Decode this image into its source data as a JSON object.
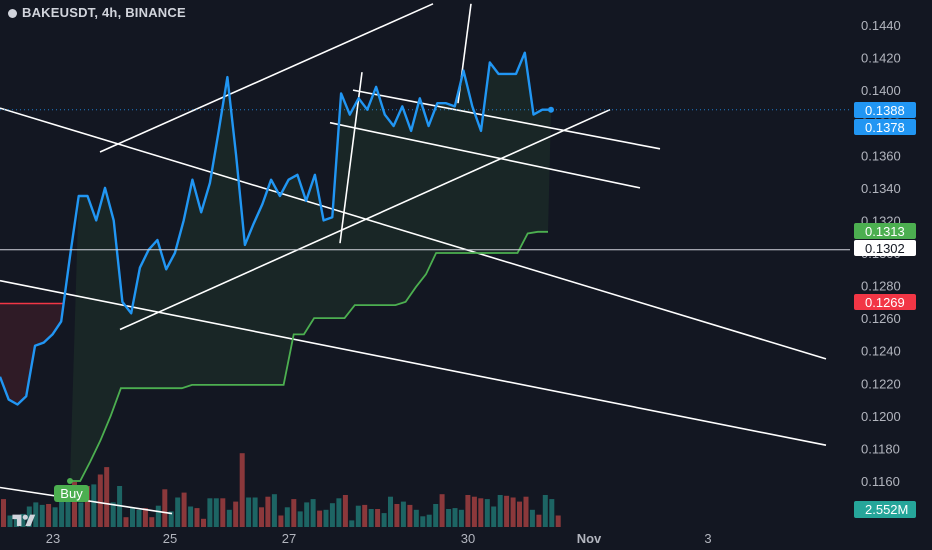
{
  "header": {
    "title": "BAKEUSDT, 4h, BINANCE"
  },
  "colors": {
    "background": "#131722",
    "price_line": "#2196f3",
    "stop_line": "#4caf50",
    "red_stop": "#f23645",
    "volume_up": "#26a69a",
    "volume_down": "#ef5350",
    "trendlines": "#ffffff"
  },
  "chart_data": {
    "type": "line",
    "xlabel": "",
    "ylabel": "",
    "x_ticks": [
      "23",
      "25",
      "27",
      "30",
      "Nov",
      "3"
    ],
    "y_ticks": [
      "0.1440",
      "0.1420",
      "0.1400",
      "0.1380",
      "0.1360",
      "0.1340",
      "0.1320",
      "0.1300",
      "0.1280",
      "0.1260",
      "0.1240",
      "0.1220",
      "0.1200",
      "0.1180",
      "0.1160"
    ],
    "ylim": [
      0.1152,
      0.1453
    ],
    "grid": false,
    "legend": "none",
    "price_series": {
      "values": [
        0.1224,
        0.121,
        0.1207,
        0.1212,
        0.1243,
        0.1245,
        0.125,
        0.1258,
        0.1298,
        0.1335,
        0.1335,
        0.132,
        0.134,
        0.132,
        0.127,
        0.1263,
        0.1291,
        0.1302,
        0.1308,
        0.129,
        0.13,
        0.132,
        0.1345,
        0.1325,
        0.1343,
        0.1375,
        0.1408,
        0.136,
        0.1305,
        0.1318,
        0.133,
        0.1345,
        0.1335,
        0.1345,
        0.1348,
        0.1332,
        0.1348,
        0.132,
        0.1322,
        0.1398,
        0.1385,
        0.1395,
        0.1388,
        0.1402,
        0.1385,
        0.1378,
        0.139,
        0.1375,
        0.1395,
        0.1378,
        0.1392,
        0.1392,
        0.139,
        0.1412,
        0.139,
        0.1375,
        0.1417,
        0.141,
        0.141,
        0.141,
        0.1423,
        0.1385,
        0.1388,
        0.1388
      ]
    },
    "stop_series": {
      "values": [
        0.116,
        0.116,
        0.1172,
        0.1185,
        0.12,
        0.1217,
        0.1217,
        0.1217,
        0.1217,
        0.1217,
        0.1217,
        0.1217,
        0.1219,
        0.1219,
        0.1219,
        0.1219,
        0.1219,
        0.1219,
        0.1219,
        0.1219,
        0.1219,
        0.1219,
        0.125,
        0.125,
        0.126,
        0.126,
        0.126,
        0.126,
        0.1268,
        0.1268,
        0.1268,
        0.1268,
        0.1268,
        0.127,
        0.1279,
        0.1287,
        0.13,
        0.13,
        0.13,
        0.13,
        0.13,
        0.13,
        0.13,
        0.13,
        0.13,
        0.1312,
        0.1313,
        0.1313
      ]
    },
    "red_stop_value": 0.1269,
    "volume": {
      "bars": [
        [
          "down",
          34
        ],
        [
          "up",
          14
        ],
        [
          "up",
          13
        ],
        [
          "up",
          16
        ],
        [
          "up",
          25
        ],
        [
          "up",
          30
        ],
        [
          "up",
          27
        ],
        [
          "down",
          28
        ],
        [
          "up",
          24
        ],
        [
          "up",
          34
        ],
        [
          "up",
          37
        ],
        [
          "down",
          55
        ],
        [
          "up",
          30
        ],
        [
          "down",
          50
        ],
        [
          "up",
          52
        ],
        [
          "down",
          64
        ],
        [
          "down",
          73
        ],
        [
          "up",
          30
        ],
        [
          "up",
          50
        ],
        [
          "down",
          12
        ],
        [
          "up",
          23
        ],
        [
          "up",
          21
        ],
        [
          "down",
          23
        ],
        [
          "down",
          12
        ],
        [
          "up",
          26
        ],
        [
          "down",
          46
        ],
        [
          "up",
          19
        ],
        [
          "up",
          36
        ],
        [
          "down",
          42
        ],
        [
          "up",
          25
        ],
        [
          "down",
          23
        ],
        [
          "down",
          10
        ],
        [
          "up",
          35
        ],
        [
          "up",
          35
        ],
        [
          "down",
          35
        ],
        [
          "up",
          21
        ],
        [
          "down",
          31
        ],
        [
          "down",
          90
        ],
        [
          "up",
          36
        ],
        [
          "up",
          36
        ],
        [
          "down",
          24
        ],
        [
          "down",
          37
        ],
        [
          "up",
          40
        ],
        [
          "down",
          14
        ],
        [
          "up",
          24
        ],
        [
          "down",
          34
        ],
        [
          "up",
          19
        ],
        [
          "up",
          30
        ],
        [
          "up",
          34
        ],
        [
          "down",
          20
        ],
        [
          "up",
          21
        ],
        [
          "up",
          29
        ],
        [
          "up",
          35
        ],
        [
          "down",
          39
        ],
        [
          "up",
          8
        ],
        [
          "up",
          26
        ],
        [
          "down",
          27
        ],
        [
          "up",
          22
        ],
        [
          "down",
          22
        ],
        [
          "up",
          17
        ],
        [
          "up",
          37
        ],
        [
          "down",
          28
        ],
        [
          "up",
          31
        ],
        [
          "down",
          27
        ],
        [
          "up",
          21
        ],
        [
          "up",
          13
        ],
        [
          "up",
          15
        ],
        [
          "up",
          28
        ],
        [
          "down",
          40
        ],
        [
          "up",
          22
        ],
        [
          "up",
          23
        ],
        [
          "up",
          21
        ],
        [
          "down",
          39
        ],
        [
          "down",
          37
        ],
        [
          "down",
          35
        ],
        [
          "up",
          34
        ],
        [
          "up",
          25
        ],
        [
          "up",
          39
        ],
        [
          "down",
          38
        ],
        [
          "down",
          36
        ],
        [
          "down",
          31
        ],
        [
          "down",
          37
        ],
        [
          "up",
          21
        ],
        [
          "down",
          15
        ],
        [
          "up",
          39
        ],
        [
          "up",
          34
        ],
        [
          "down",
          14
        ]
      ]
    },
    "trendlines": [
      {
        "p1": [
          0,
          0.1389
        ],
        "p2": [
          826,
          0.1235
        ]
      },
      {
        "p1": [
          0,
          0.1283
        ],
        "p2": [
          826,
          0.1182
        ]
      },
      {
        "p1": [
          100,
          0.1362
        ],
        "p2": [
          433,
          0.1453
        ]
      },
      {
        "p1": [
          120,
          0.1253
        ],
        "p2": [
          610,
          0.1388
        ]
      },
      {
        "p1": [
          353,
          0.14
        ],
        "p2": [
          660,
          0.1364
        ]
      },
      {
        "p1": [
          330,
          0.138
        ],
        "p2": [
          640,
          0.134
        ]
      },
      {
        "p1": [
          340,
          0.1306
        ],
        "p2": [
          362,
          0.1411
        ]
      },
      {
        "p1": [
          458,
          0.1392
        ],
        "p2": [
          471,
          0.1453
        ]
      },
      {
        "p1": [
          0,
          0.1156
        ],
        "p2": [
          172,
          0.114
        ]
      }
    ],
    "annotations": {
      "buy_label": "Buy"
    },
    "price_badges": [
      {
        "value": 0.1388,
        "label": "0.1388",
        "style": "blue"
      },
      {
        "value": 0.1378,
        "label": "0.1378",
        "style": "blue"
      },
      {
        "value": 0.1313,
        "label": "0.1313",
        "style": "green"
      },
      {
        "value": 0.1302,
        "label": "0.1302",
        "style": "white"
      },
      {
        "value": 0.1269,
        "label": "0.1269",
        "style": "red"
      }
    ],
    "volume_badge": "2.552M",
    "horizontal_line": 0.1302
  }
}
